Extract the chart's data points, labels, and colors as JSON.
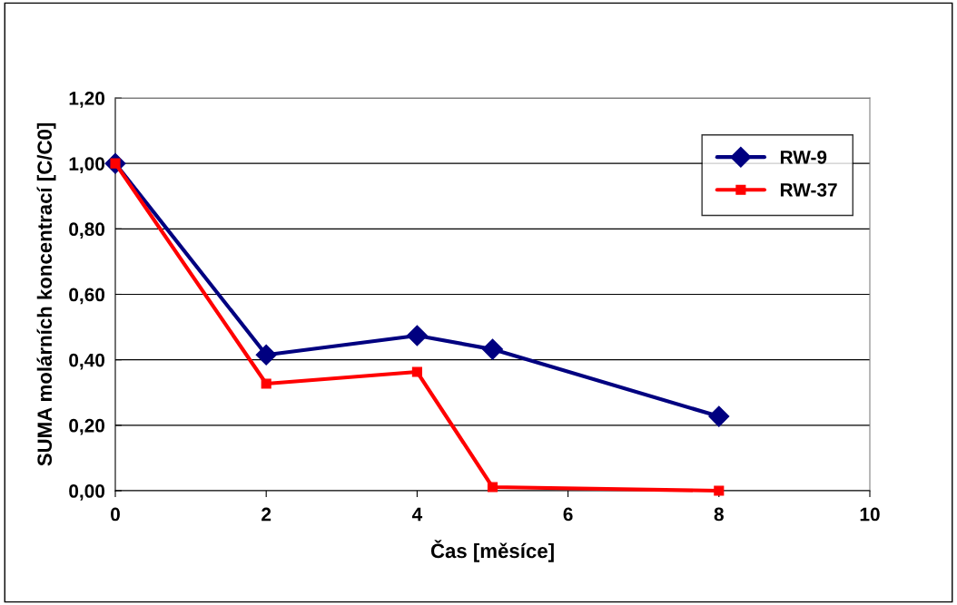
{
  "chart_data": {
    "type": "line",
    "xlabel": "Čas [měsíce]",
    "ylabel": "SUMA molárních koncentrací [C/C0]",
    "series": [
      {
        "name": "RW-9",
        "color": "#000080",
        "marker": "diamond",
        "x": [
          0,
          2,
          4,
          5,
          8
        ],
        "values": [
          1.0,
          0.415,
          0.474,
          0.432,
          0.227
        ]
      },
      {
        "name": "RW-37",
        "color": "#ff0000",
        "marker": "square",
        "x": [
          0,
          2,
          4,
          5,
          8
        ],
        "values": [
          1.0,
          0.327,
          0.363,
          0.011,
          0.0
        ]
      }
    ],
    "xlim": [
      0,
      10
    ],
    "xticks": [
      0,
      2,
      4,
      6,
      8,
      10
    ],
    "ylim": [
      0,
      1.2
    ],
    "yticks": [
      {
        "value": 0,
        "label": "0,00"
      },
      {
        "value": 0.2,
        "label": "0,20"
      },
      {
        "value": 0.4,
        "label": "0,40"
      },
      {
        "value": 0.6,
        "label": "0,60"
      },
      {
        "value": 0.8,
        "label": "0,80"
      },
      {
        "value": 1.0,
        "label": "1,00"
      },
      {
        "value": 1.2,
        "label": "1,20"
      }
    ],
    "grid": "y",
    "legend": "top right",
    "line_style": "solid"
  }
}
